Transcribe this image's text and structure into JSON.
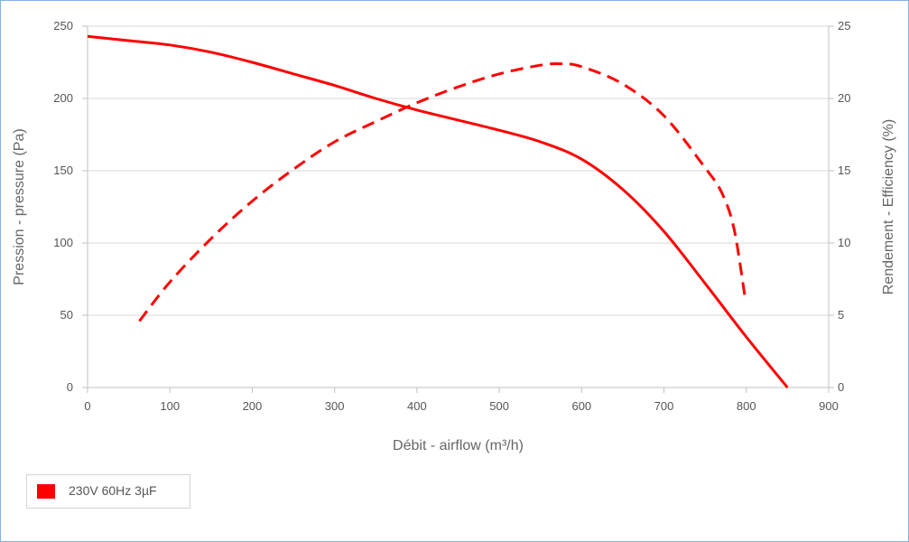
{
  "chart_data": {
    "type": "line",
    "xlabel": "Débit - airflow (m³/h)",
    "ylabel": "Pression - pressure (Pa)",
    "y2label": "Rendement - Efficiency (%)",
    "xlim": [
      0,
      900
    ],
    "ylim": [
      0,
      250
    ],
    "y2lim": [
      0,
      25
    ],
    "x_ticks": [
      0,
      100,
      200,
      300,
      400,
      500,
      600,
      700,
      800,
      900
    ],
    "y_ticks": [
      0,
      50,
      100,
      150,
      200,
      250
    ],
    "y2_ticks": [
      0,
      5,
      10,
      15,
      20,
      25
    ],
    "grid": true,
    "legend_position": "bottom-left",
    "series": [
      {
        "name": "230V 60Hz 3µF",
        "kind": "pressure",
        "axis": "left",
        "style": "solid",
        "color": "#ff0000",
        "x": [
          0,
          50,
          100,
          150,
          200,
          250,
          300,
          350,
          400,
          450,
          500,
          550,
          600,
          650,
          700,
          750,
          800,
          850
        ],
        "y": [
          243,
          240,
          237,
          232,
          225,
          217,
          209,
          200,
          192,
          185,
          178,
          170,
          158,
          137,
          108,
          72,
          35,
          0
        ]
      },
      {
        "name": "230V 60Hz 3µF",
        "kind": "efficiency",
        "axis": "right",
        "style": "dashed",
        "color": "#ff0000",
        "x": [
          63,
          100,
          150,
          200,
          250,
          300,
          350,
          400,
          450,
          500,
          550,
          575,
          600,
          650,
          700,
          750,
          770,
          785,
          798
        ],
        "y": [
          4.6,
          7.3,
          10.3,
          12.9,
          15.1,
          17.0,
          18.4,
          19.7,
          20.8,
          21.7,
          22.3,
          22.4,
          22.2,
          21.0,
          18.8,
          15.2,
          13.5,
          11.0,
          6.4
        ]
      }
    ]
  },
  "legend": {
    "label": "230V 60Hz 3µF",
    "color": "#ff0000"
  }
}
